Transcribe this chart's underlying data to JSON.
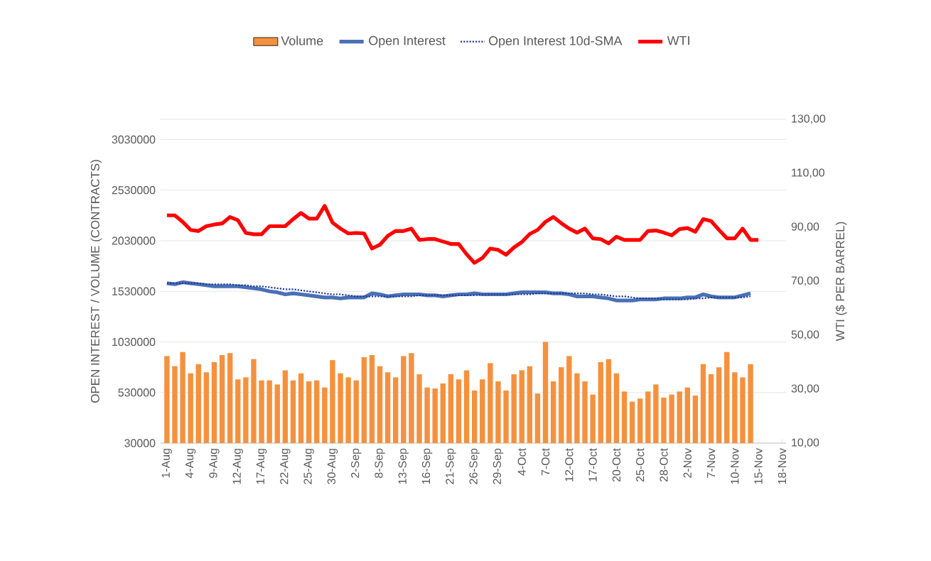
{
  "chart_data": {
    "type": "bar",
    "categories": [
      "1-Aug",
      null,
      null,
      "4-Aug",
      null,
      null,
      "9-Aug",
      null,
      null,
      "12-Aug",
      null,
      null,
      "17-Aug",
      null,
      null,
      "22-Aug",
      null,
      null,
      "25-Aug",
      null,
      null,
      "30-Aug",
      null,
      null,
      "2-Sep",
      null,
      null,
      "8-Sep",
      null,
      null,
      "13-Sep",
      null,
      null,
      "16-Sep",
      null,
      null,
      "21-Sep",
      null,
      null,
      "26-Sep",
      null,
      null,
      "29-Sep",
      null,
      null,
      "4-Oct",
      null,
      null,
      "7-Oct",
      null,
      null,
      "12-Oct",
      null,
      null,
      "17-Oct",
      null,
      null,
      "20-Oct",
      null,
      null,
      "25-Oct",
      null,
      null,
      "28-Oct",
      null,
      null,
      "2-Nov",
      null,
      null,
      "7-Nov",
      null,
      null,
      "10-Nov",
      null,
      null,
      "15-Nov",
      null,
      null,
      "18-Nov"
    ],
    "series": [
      {
        "name": "Volume",
        "color": "#f4913e",
        "values": [
          890000,
          790000,
          930000,
          720000,
          810000,
          730000,
          830000,
          900000,
          920000,
          660000,
          680000,
          860000,
          650000,
          650000,
          610000,
          750000,
          650000,
          720000,
          640000,
          650000,
          580000,
          850000,
          720000,
          680000,
          650000,
          880000,
          900000,
          790000,
          730000,
          680000,
          890000,
          920000,
          710000,
          580000,
          570000,
          620000,
          710000,
          660000,
          750000,
          550000,
          660000,
          820000,
          640000,
          550000,
          710000,
          750000,
          790000,
          520000,
          1030000,
          640000,
          780000,
          890000,
          720000,
          640000,
          510000,
          830000,
          860000,
          720000,
          540000,
          440000,
          470000,
          540000,
          610000,
          480000,
          510000,
          540000,
          580000,
          500000,
          810000,
          710000,
          780000,
          930000,
          730000,
          680000,
          810000,
          null,
          null,
          null,
          null
        ]
      },
      {
        "name": "Open Interest",
        "type": "line",
        "color": "#4a70b5",
        "values": [
          1610000,
          1600000,
          1620000,
          1610000,
          1600000,
          1590000,
          1580000,
          1580000,
          1580000,
          1580000,
          1570000,
          1560000,
          1550000,
          1530000,
          1520000,
          1500000,
          1510000,
          1500000,
          1490000,
          1480000,
          1470000,
          1470000,
          1460000,
          1470000,
          1470000,
          1470000,
          1510000,
          1500000,
          1480000,
          1490000,
          1500000,
          1500000,
          1500000,
          1490000,
          1490000,
          1480000,
          1490000,
          1500000,
          1500000,
          1510000,
          1500000,
          1500000,
          1500000,
          1500000,
          1510000,
          1520000,
          1520000,
          1520000,
          1520000,
          1510000,
          1510000,
          1500000,
          1480000,
          1480000,
          1480000,
          1470000,
          1460000,
          1440000,
          1440000,
          1440000,
          1450000,
          1450000,
          1450000,
          1460000,
          1460000,
          1460000,
          1470000,
          1470000,
          1500000,
          1480000,
          1470000,
          1470000,
          1470000,
          1490000,
          1510000,
          null,
          null,
          null,
          null
        ]
      },
      {
        "name": "Open Interest 10d-SMA",
        "type": "line",
        "color": "#1f3d99",
        "line_style": "dotted",
        "values": [
          1610000,
          1610000,
          1610000,
          1610000,
          1610000,
          1600000,
          1600000,
          1600000,
          1600000,
          1590000,
          1590000,
          1580000,
          1580000,
          1570000,
          1560000,
          1550000,
          1550000,
          1540000,
          1530000,
          1520000,
          1510000,
          1500000,
          1500000,
          1490000,
          1480000,
          1480000,
          1480000,
          1480000,
          1480000,
          1480000,
          1480000,
          1480000,
          1490000,
          1490000,
          1490000,
          1490000,
          1490000,
          1490000,
          1490000,
          1490000,
          1500000,
          1500000,
          1500000,
          1500000,
          1500000,
          1500000,
          1500000,
          1510000,
          1510000,
          1510000,
          1510000,
          1510000,
          1510000,
          1510000,
          1500000,
          1500000,
          1490000,
          1480000,
          1480000,
          1470000,
          1460000,
          1460000,
          1460000,
          1450000,
          1450000,
          1450000,
          1450000,
          1460000,
          1460000,
          1470000,
          1470000,
          1470000,
          1470000,
          1470000,
          1480000,
          null,
          null,
          null,
          null
        ]
      },
      {
        "name": "WTI",
        "type": "line",
        "color": "#ff0000",
        "axis": "y2",
        "values": [
          94.4,
          94.4,
          92.0,
          89.0,
          88.6,
          90.4,
          91.0,
          91.4,
          93.8,
          92.6,
          87.9,
          87.4,
          87.4,
          90.4,
          90.4,
          90.4,
          93.0,
          95.3,
          93.2,
          93.2,
          97.9,
          91.7,
          89.5,
          87.7,
          87.9,
          87.7,
          82.1,
          83.5,
          86.8,
          88.6,
          88.6,
          89.5,
          85.3,
          85.6,
          85.6,
          84.7,
          83.8,
          83.8,
          80.0,
          76.8,
          78.6,
          82.1,
          81.6,
          79.8,
          82.5,
          84.5,
          87.5,
          89.0,
          92.0,
          93.8,
          91.5,
          89.5,
          88.0,
          89.5,
          85.9,
          85.6,
          84.0,
          86.5,
          85.3,
          85.3,
          85.3,
          88.6,
          88.8,
          88.0,
          87.0,
          89.3,
          89.7,
          88.3,
          93.0,
          92.3,
          89.0,
          85.9,
          85.9,
          89.5,
          85.3,
          85.3,
          null,
          null,
          null
        ]
      }
    ],
    "ylabel": "OPEN INTEREST / VOLUME (CONTRACTS)",
    "y2label": "WTI ($ PER BARREL)",
    "ylim": [
      30000,
      3230000
    ],
    "yticks": [
      30000,
      530000,
      1030000,
      1530000,
      2030000,
      2530000,
      3030000
    ],
    "y2lim": [
      10,
      130
    ],
    "y2ticks": [
      {
        "value": 10,
        "label": "10,00"
      },
      {
        "value": 30,
        "label": "30,00"
      },
      {
        "value": 50,
        "label": "50,00"
      },
      {
        "value": 70,
        "label": "70,00"
      },
      {
        "value": 90,
        "label": "90,00"
      },
      {
        "value": 110,
        "label": "110,00"
      },
      {
        "value": 130,
        "label": "130,00"
      }
    ],
    "grid": "y",
    "legend": "top"
  }
}
